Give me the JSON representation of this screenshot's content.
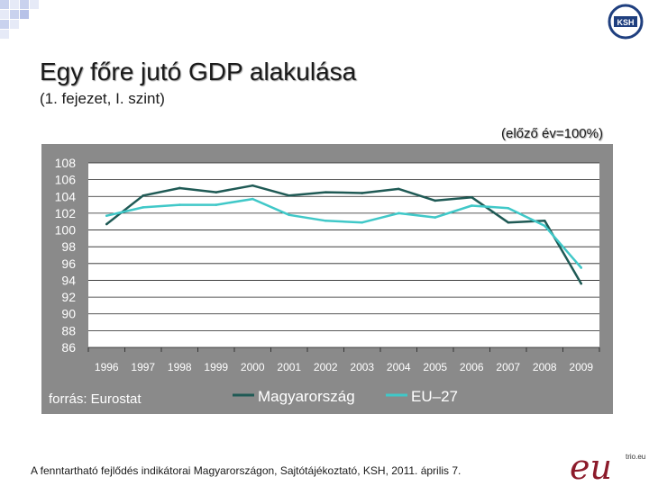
{
  "slide": {
    "title": "Egy főre jutó GDP alakulása",
    "subtitle": "(1. fejezet, I. szint)",
    "unit_note": "(előző év=100%)",
    "source": "forrás: Eurostat",
    "footer": "A fenntartható fejlődés indikátorai Magyarországon, Sajtótájékoztató, KSH, 2011. április 7.",
    "ksh_logo_text": "KSH",
    "eu_logo_text": "eu",
    "eu_logo_small": "trio.eu"
  },
  "chart_data": {
    "type": "line",
    "title": "Egy főre jutó GDP alakulása",
    "x": [
      "1996",
      "1997",
      "1998",
      "1999",
      "2000",
      "2001",
      "2002",
      "2003",
      "2004",
      "2005",
      "2006",
      "2007",
      "2008",
      "2009"
    ],
    "ylim": [
      86,
      108
    ],
    "yticks": [
      108,
      106,
      104,
      102,
      100,
      98,
      96,
      94,
      92,
      90,
      88,
      86
    ],
    "grid": true,
    "legend_position": "bottom",
    "series": [
      {
        "name": "Magyarország",
        "color": "#1f5a55",
        "values": [
          100.7,
          104.1,
          105.0,
          104.5,
          105.3,
          104.1,
          104.5,
          104.4,
          104.9,
          103.5,
          103.9,
          100.9,
          101.1,
          93.6
        ]
      },
      {
        "name": "EU–27",
        "color": "#40c8c8",
        "values": [
          101.7,
          102.7,
          103.0,
          103.0,
          103.7,
          101.8,
          101.1,
          100.9,
          102.0,
          101.5,
          102.9,
          102.6,
          100.5,
          95.5
        ]
      }
    ]
  }
}
